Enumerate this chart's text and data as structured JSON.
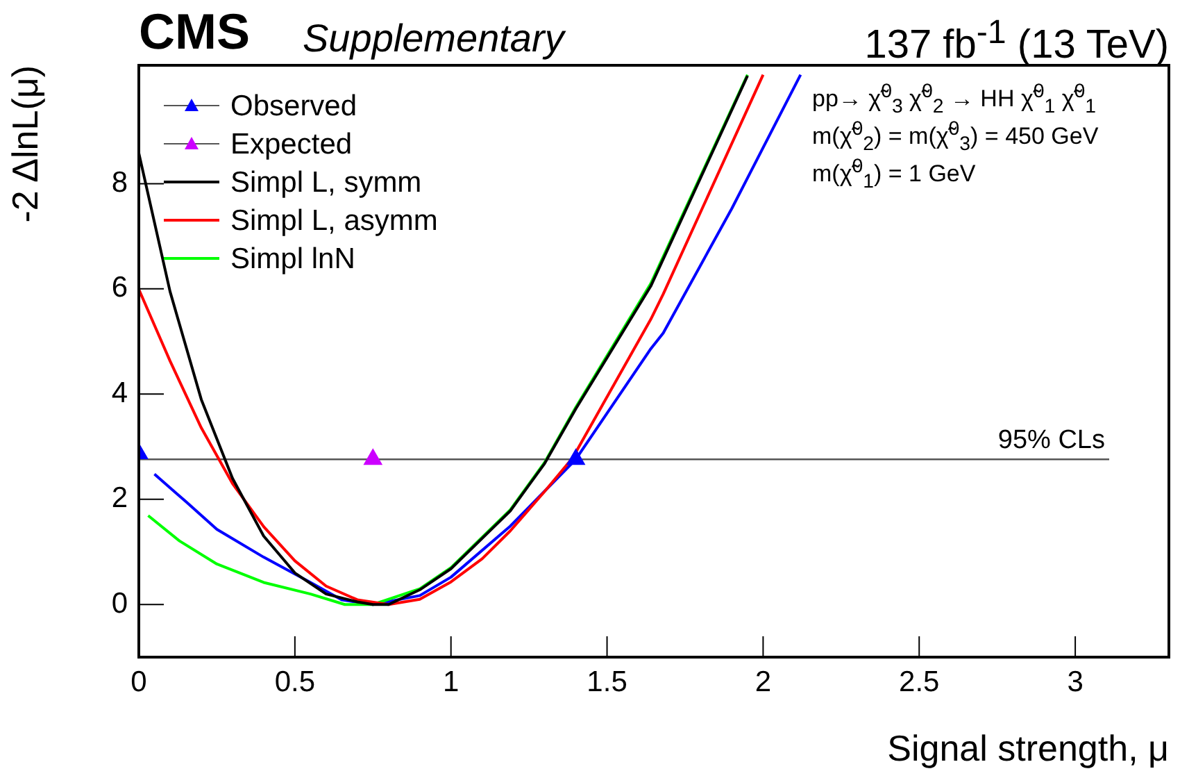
{
  "chart_data": {
    "type": "line",
    "title": "CMS",
    "subtitle": "Supplementary",
    "xlabel": "Signal strength, μ",
    "ylabel": "-2 ΔlnL(μ)",
    "xlim": [
      0,
      3.3
    ],
    "xticks": [
      0,
      0.5,
      1,
      1.5,
      2,
      2.5,
      3
    ],
    "ylim": [
      -1,
      10.25
    ],
    "yticks": [
      0,
      2,
      4,
      6,
      8
    ],
    "grid": false,
    "legend": "top left",
    "line_style": "solid",
    "annotations": [
      "137 fb$^{-1}$ (13 TeV)",
      "pp→ χ̃$^{0}$$_{3}$ χ̃$^{0}$$_{2}$ → HH χ̃$^{0}$$_{1}$ χ̃$^{0}$$_{1}$",
      "m(χ̃$^{0}$$_{2}$) = m(χ̃$^{0}$$_{3}$) = 450 GeV",
      "m(χ̃$^{0}$$_{1}$) = 1 GeV"
    ],
    "ref_lines": [
      {
        "axis": "y",
        "value": 2.76,
        "label": "95% CLs",
        "color": "#555555"
      }
    ],
    "series": [
      {
        "name": "Observed",
        "type": "scatter",
        "marker": "triangle",
        "color": "#0000ff",
        "x": [
          0,
          1.4
        ],
        "values": [
          2.87,
          2.76
        ]
      },
      {
        "name": "Expected",
        "type": "scatter",
        "marker": "triangle",
        "color": "#cc00ff",
        "x": [
          0.75
        ],
        "values": [
          2.76
        ]
      },
      {
        "name": "Simpl L, symm",
        "color": "#000000",
        "x": [
          0,
          0.1,
          0.2,
          0.3,
          0.4,
          0.5,
          0.6,
          0.7,
          0.75,
          0.8,
          0.9,
          1.0,
          1.19,
          1.3,
          1.4,
          1.64,
          1.95
        ],
        "values": [
          8.58,
          5.95,
          3.9,
          2.4,
          1.3,
          0.6,
          0.2,
          0.05,
          0,
          0.0,
          0.28,
          0.68,
          1.78,
          2.68,
          3.72,
          6.05,
          10.05
        ]
      },
      {
        "name": "Simpl L, asymm",
        "color": "#ff0000",
        "x": [
          0,
          0.1,
          0.2,
          0.3,
          0.4,
          0.5,
          0.6,
          0.7,
          0.8,
          0.9,
          1.0,
          1.1,
          1.19,
          1.3,
          1.39,
          1.64,
          1.68,
          2.0
        ],
        "values": [
          5.99,
          4.63,
          3.36,
          2.3,
          1.48,
          0.83,
          0.35,
          0.09,
          0.0,
          0.1,
          0.43,
          0.87,
          1.4,
          2.15,
          2.79,
          5.42,
          5.9,
          10.07
        ]
      },
      {
        "name": "Simpl lnN",
        "color": "#00ff00",
        "x": [
          0.03,
          0.13,
          0.25,
          0.4,
          0.55,
          0.66,
          0.75,
          0.9,
          1.0,
          1.19,
          1.3,
          1.4,
          1.64,
          1.95
        ],
        "values": [
          1.69,
          1.21,
          0.77,
          0.42,
          0.2,
          0.0,
          0.0,
          0.3,
          0.7,
          1.8,
          2.7,
          3.75,
          6.1,
          10.07
        ]
      },
      {
        "color": "#0000ff",
        "x": [
          0.05,
          0.15,
          0.25,
          0.4,
          0.55,
          0.65,
          0.75,
          0.9,
          1.0,
          1.19,
          1.4,
          1.64,
          1.68,
          1.9,
          2.12
        ],
        "values": [
          2.48,
          1.96,
          1.43,
          0.9,
          0.42,
          0.09,
          0.0,
          0.17,
          0.52,
          1.49,
          2.76,
          4.86,
          5.16,
          7.53,
          10.07
        ]
      }
    ]
  }
}
